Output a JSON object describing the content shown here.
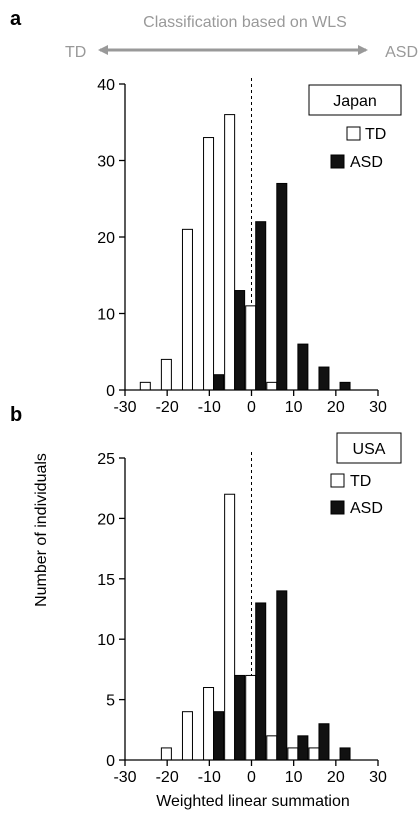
{
  "header": {
    "title": "Classification based on WLS",
    "left_label": "TD",
    "right_label": "ASD"
  },
  "shared": {
    "ylabel": "Number of individuals",
    "xlabel": "Weighted linear summation"
  },
  "colors": {
    "td_fill": "#ffffff",
    "asd_fill": "#111111",
    "arrow": "#999999",
    "axis": "#000000"
  },
  "chart_data": [
    {
      "type": "bar",
      "panel_label": "a",
      "title": "",
      "region_label": "Japan",
      "xlabel": "",
      "ylabel": "Number of individuals",
      "x": [
        -24,
        -19,
        -14,
        -9,
        -4,
        1,
        6,
        11,
        16,
        21
      ],
      "xlim": [
        -30,
        30
      ],
      "ylim": [
        0,
        40
      ],
      "xticks": [
        -30,
        -20,
        -10,
        0,
        10,
        20,
        30
      ],
      "yticks": [
        0,
        10,
        20,
        30,
        40
      ],
      "legend_position": "top-right",
      "series": [
        {
          "name": "TD",
          "values": [
            1,
            4,
            21,
            33,
            36,
            11,
            1,
            0,
            0,
            0
          ]
        },
        {
          "name": "ASD",
          "values": [
            0,
            0,
            0,
            2,
            13,
            22,
            27,
            6,
            3,
            1
          ]
        }
      ]
    },
    {
      "type": "bar",
      "panel_label": "b",
      "title": "",
      "region_label": "USA",
      "xlabel": "Weighted linear summation",
      "ylabel": "Number of individuals",
      "x": [
        -24,
        -19,
        -14,
        -9,
        -4,
        1,
        6,
        11,
        16,
        21
      ],
      "xlim": [
        -30,
        30
      ],
      "ylim": [
        0,
        25
      ],
      "xticks": [
        -30,
        -20,
        -10,
        0,
        10,
        20,
        30
      ],
      "yticks": [
        0,
        5,
        10,
        15,
        20,
        25
      ],
      "legend_position": "top-right",
      "series": [
        {
          "name": "TD",
          "values": [
            0,
            1,
            4,
            6,
            22,
            7,
            2,
            1,
            1,
            0
          ]
        },
        {
          "name": "ASD",
          "values": [
            0,
            0,
            0,
            4,
            7,
            13,
            14,
            2,
            3,
            1
          ]
        }
      ]
    }
  ]
}
